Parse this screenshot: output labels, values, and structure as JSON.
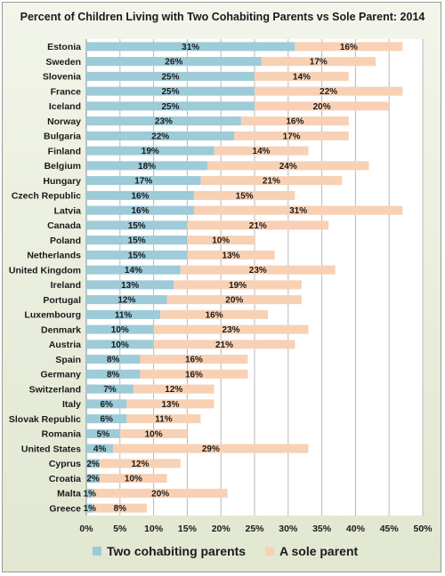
{
  "chart_data": {
    "type": "bar",
    "orientation": "horizontal",
    "stacked": true,
    "title": "Percent of Children Living with Two Cohabiting Parents vs Sole Parent: 2014",
    "xlabel": "",
    "ylabel": "",
    "xlim": [
      0,
      50
    ],
    "x_ticks": [
      "0%",
      "5%",
      "10%",
      "15%",
      "20%",
      "25%",
      "30%",
      "35%",
      "40%",
      "45%",
      "50%"
    ],
    "grid": "vertical",
    "legend_position": "bottom",
    "categories": [
      "Estonia",
      "Sweden",
      "Slovenia",
      "France",
      "Iceland",
      "Norway",
      "Bulgaria",
      "Finland",
      "Belgium",
      "Hungary",
      "Czech Republic",
      "Latvia",
      "Canada",
      "Poland",
      "Netherlands",
      "United Kingdom",
      "Ireland",
      "Portugal",
      "Luxembourg",
      "Denmark",
      "Austria",
      "Spain",
      "Germany",
      "Switzerland",
      "Italy",
      "Slovak Republic",
      "Romania",
      "United States",
      "Cyprus",
      "Croatia",
      "Malta",
      "Greece"
    ],
    "series": [
      {
        "name": "Two cohabiting parents",
        "color": "#9dcbd8",
        "values": [
          31,
          26,
          25,
          25,
          25,
          23,
          22,
          19,
          18,
          17,
          16,
          16,
          15,
          15,
          15,
          14,
          13,
          12,
          11,
          10,
          10,
          8,
          8,
          7,
          6,
          6,
          5,
          4,
          2,
          2,
          1,
          1
        ],
        "labels": [
          "31%",
          "26%",
          "25%",
          "25%",
          "25%",
          "23%",
          "22%",
          "19%",
          "18%",
          "17%",
          "16%",
          "16%",
          "15%",
          "15%",
          "15%",
          "14%",
          "13%",
          "12%",
          "11%",
          "10%",
          "10%",
          "8%",
          "8%",
          "7%",
          "6%",
          "6%",
          "5%",
          "4%",
          "2%",
          "2%",
          "1%",
          "1%"
        ]
      },
      {
        "name": "A sole parent",
        "color": "#f8d1b4",
        "values": [
          16,
          17,
          14,
          22,
          20,
          16,
          17,
          14,
          24,
          21,
          15,
          31,
          21,
          10,
          13,
          23,
          19,
          20,
          16,
          23,
          21,
          16,
          16,
          12,
          13,
          11,
          10,
          29,
          12,
          10,
          20,
          8
        ],
        "labels": [
          "16%",
          "17%",
          "14%",
          "22%",
          "20%",
          "16%",
          "17%",
          "14%",
          "24%",
          "21%",
          "15%",
          "31%",
          "21%",
          "10%",
          "13%",
          "23%",
          "19%",
          "20%",
          "16%",
          "23%",
          "21%",
          "16%",
          "16%",
          "12%",
          "13%",
          "11%",
          "10%",
          "29%",
          "12%",
          "10%",
          "20%",
          "8%"
        ]
      }
    ]
  }
}
